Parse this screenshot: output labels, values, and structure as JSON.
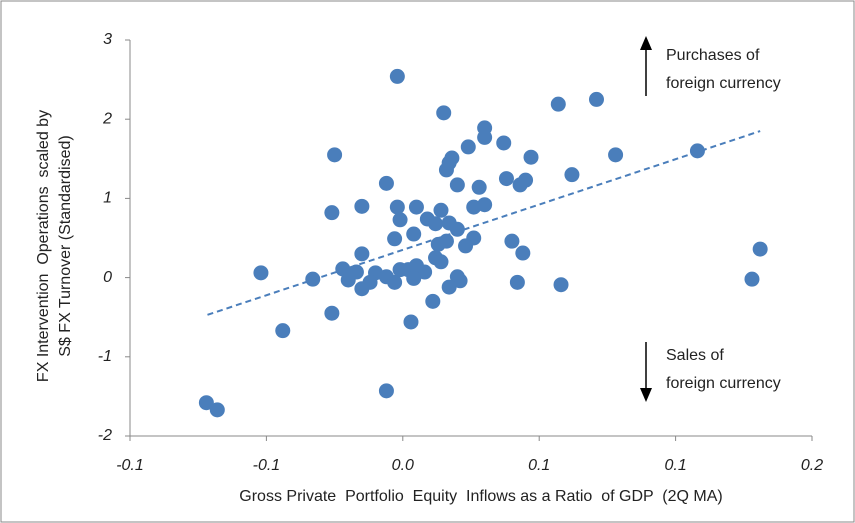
{
  "chart_data": {
    "type": "scatter",
    "xlabel": "Gross Private  Portfolio  Equity  Inflows as a Ratio  of GDP  (2Q MA)",
    "ylabel": [
      "FX Intervention  Operations  scaled by",
      "S$ FX Turnover (Standardised)"
    ],
    "annotations": [
      {
        "lines": [
          "Purchases of",
          "foreign currency"
        ]
      },
      {
        "lines": [
          "Sales of",
          "foreign currency"
        ]
      }
    ],
    "xlim": [
      -0.1,
      0.15
    ],
    "xticks": [
      {
        "value": -0.1,
        "label": "-0.1"
      },
      {
        "value": -0.05,
        "label": "-0.1"
      },
      {
        "value": 0,
        "label": "0.0"
      },
      {
        "value": 0.05,
        "label": "0.1"
      },
      {
        "value": 0.1,
        "label": "0.1"
      },
      {
        "value": 0.15,
        "label": "0.2"
      }
    ],
    "ylim": [
      -2,
      3
    ],
    "yticks": [
      -2,
      -1,
      0,
      1,
      2,
      3
    ],
    "color": "#4a7ebb",
    "x": [
      -0.002,
      0.015,
      0.057,
      0.071,
      0.03,
      0.03,
      0.024,
      0.037,
      0.047,
      0.078,
      0.108,
      -0.025,
      0.017,
      0.018,
      0.016,
      0.02,
      0.038,
      0.043,
      0.045,
      0.028,
      -0.006,
      0.062,
      -0.026,
      -0.015,
      -0.002,
      0.005,
      0.03,
      0.026,
      0.014,
      -0.001,
      0.009,
      0.012,
      0.017,
      0.02,
      -0.003,
      0.004,
      0.013,
      0.016,
      0.026,
      0.023,
      0.04,
      0.044,
      -0.015,
      -0.052,
      -0.033,
      -0.022,
      -0.017,
      -0.01,
      -0.015,
      -0.006,
      -0.001,
      0.002,
      0.005,
      0.008,
      0.004,
      -0.003,
      0.012,
      0.014,
      0.02,
      0.021,
      0.017,
      0.011,
      0.003,
      -0.026,
      -0.044,
      0.042,
      0.058,
      0.128,
      0.131,
      -0.006,
      -0.072,
      -0.068,
      -0.02,
      -0.012
    ],
    "values": [
      2.54,
      2.08,
      2.19,
      2.25,
      1.89,
      1.77,
      1.65,
      1.7,
      1.52,
      1.55,
      1.6,
      1.55,
      1.45,
      1.51,
      1.36,
      1.17,
      1.25,
      1.17,
      1.23,
      1.14,
      1.19,
      1.3,
      0.82,
      0.9,
      0.89,
      0.89,
      0.92,
      0.89,
      0.85,
      0.73,
      0.74,
      0.68,
      0.69,
      0.61,
      0.49,
      0.55,
      0.42,
      0.46,
      0.5,
      0.4,
      0.46,
      0.31,
      0.3,
      0.06,
      -0.02,
      0.11,
      0.07,
      0.06,
      -0.14,
      0.01,
      0.1,
      0.1,
      0.15,
      0.07,
      -0.01,
      -0.06,
      0.25,
      0.2,
      0.01,
      -0.04,
      -0.12,
      -0.3,
      -0.56,
      -0.45,
      -0.67,
      -0.06,
      -0.09,
      -0.02,
      0.36,
      -1.43,
      -1.58,
      -1.67,
      -0.03,
      -0.06
    ],
    "trendline": {
      "color": "#4a7ebb",
      "x": [
        -0.0716,
        0.131
      ],
      "values": [
        -0.47,
        1.85
      ]
    }
  }
}
